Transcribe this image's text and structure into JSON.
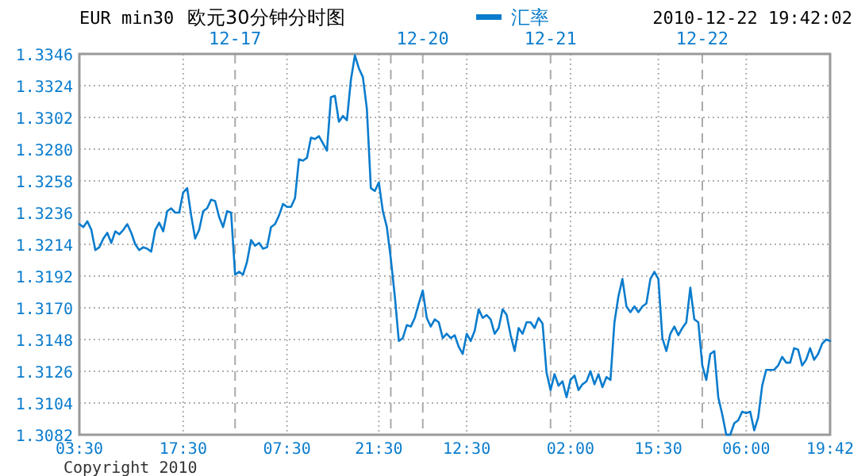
{
  "chart_data": {
    "type": "line",
    "title": "EUR min30",
    "subtitle": "欧元30分钟分时图",
    "annotations": [
      "2010-12-22 19:42:02",
      "Copyright 2010",
      "12-17",
      "12-20",
      "12-21",
      "12-22"
    ],
    "categories": [
      "03:30",
      null,
      null,
      null,
      null,
      null,
      null,
      null,
      null,
      null,
      null,
      null,
      null,
      null,
      null,
      null,
      null,
      null,
      null,
      null,
      null,
      null,
      null,
      null,
      null,
      null,
      "17:30",
      null,
      null,
      null,
      null,
      null,
      null,
      null,
      null,
      null,
      null,
      null,
      null,
      null,
      null,
      null,
      null,
      null,
      null,
      null,
      null,
      null,
      null,
      null,
      null,
      null,
      "07:30",
      null,
      null,
      null,
      null,
      null,
      null,
      null,
      null,
      null,
      null,
      null,
      null,
      null,
      null,
      null,
      null,
      null,
      null,
      null,
      null,
      null,
      null,
      "21:30",
      null,
      null,
      null,
      null,
      null,
      null,
      null,
      null,
      null,
      null,
      null,
      null,
      null,
      null,
      null,
      null,
      null,
      null,
      null,
      null,
      null,
      "12:30",
      null,
      null,
      null,
      null,
      null,
      null,
      null,
      null,
      null,
      null,
      null,
      null,
      null,
      null,
      null,
      null,
      null,
      null,
      null,
      null,
      null,
      null,
      null,
      null,
      null,
      "02:00",
      null,
      null,
      null,
      null,
      null,
      null,
      null,
      null,
      null,
      null,
      null,
      null,
      null,
      null,
      null,
      null,
      null,
      null,
      null,
      null,
      null,
      "15:30",
      null,
      null,
      null,
      null,
      null,
      null,
      null,
      null,
      null,
      null,
      null,
      null,
      null,
      null,
      null,
      null,
      null,
      null,
      null,
      null,
      null,
      "06:00",
      null,
      null,
      null,
      null,
      null,
      null,
      null,
      null,
      null,
      null,
      null,
      null,
      null,
      null,
      null,
      null,
      null,
      null,
      null,
      null,
      "19:42"
    ],
    "ylim": [
      1.3082,
      1.3346
    ],
    "yticks": [
      1.3082,
      1.3104,
      1.3126,
      1.3148,
      {
        "value": 1.317,
        "label": "1.3170"
      },
      1.3192,
      1.3214,
      1.3236,
      1.3258,
      {
        "value": 1.328,
        "label": "1.3280"
      },
      1.3302,
      1.3324,
      1.3346
    ],
    "grid": true,
    "legend": "top",
    "series": [
      {
        "name": "汇率",
        "color": "#0a7ccd",
        "values": [
          1.3228,
          1.3226,
          1.323,
          1.3224,
          1.321,
          1.3212,
          1.3218,
          1.3222,
          1.3215,
          1.3223,
          1.3221,
          1.3224,
          1.3228,
          1.3222,
          1.3214,
          1.321,
          1.3212,
          1.3211,
          1.3209,
          1.3224,
          1.3229,
          1.3223,
          1.3237,
          1.3239,
          1.3236,
          1.3236,
          1.325,
          1.3253,
          1.3234,
          1.3218,
          1.3224,
          1.3237,
          1.3239,
          1.3245,
          1.3244,
          1.3233,
          1.3226,
          1.3237,
          1.3236,
          1.3193,
          1.3195,
          1.3193,
          1.3202,
          1.3217,
          1.3213,
          1.3215,
          1.3211,
          1.3212,
          1.3226,
          1.3228,
          1.3234,
          1.3242,
          1.324,
          1.324,
          1.3246,
          1.3273,
          1.3272,
          1.3274,
          1.3288,
          1.3287,
          1.3289,
          1.3284,
          1.3279,
          1.3316,
          1.3317,
          1.3299,
          1.3303,
          1.33,
          1.3328,
          1.3345,
          1.3336,
          1.333,
          1.3308,
          1.3253,
          1.3251,
          1.3257,
          1.3237,
          1.3226,
          1.3204,
          1.3178,
          1.3147,
          1.3149,
          1.3158,
          1.3157,
          1.3163,
          1.3173,
          1.3182,
          1.3163,
          1.3157,
          1.3162,
          1.316,
          1.3149,
          1.3152,
          1.3149,
          1.3151,
          1.3143,
          1.3138,
          1.3152,
          1.3147,
          1.3154,
          1.3169,
          1.3163,
          1.3165,
          1.3162,
          1.3152,
          1.3156,
          1.3169,
          1.3165,
          1.3151,
          1.314,
          1.3156,
          1.3152,
          1.316,
          1.316,
          1.3156,
          1.3163,
          1.3159,
          1.3125,
          1.3113,
          1.3124,
          1.3116,
          1.3119,
          1.3108,
          1.312,
          1.3123,
          1.3113,
          1.3117,
          1.3119,
          1.3126,
          1.3117,
          1.3124,
          1.3115,
          1.3122,
          1.312,
          1.316,
          1.3178,
          1.319,
          1.3171,
          1.3167,
          1.3171,
          1.3167,
          1.3171,
          1.3173,
          1.319,
          1.3195,
          1.319,
          1.3149,
          1.314,
          1.3152,
          1.3157,
          1.3151,
          1.3156,
          1.316,
          1.3184,
          1.3162,
          1.316,
          1.313,
          1.312,
          1.3138,
          1.314,
          1.3108,
          1.3096,
          1.3082,
          1.3082,
          1.309,
          1.3092,
          1.3098,
          1.3097,
          1.3098,
          1.3085,
          1.3094,
          1.3116,
          1.3127,
          1.3127,
          1.3127,
          1.313,
          1.3136,
          1.3132,
          1.3132,
          1.3142,
          1.3141,
          1.313,
          1.3134,
          1.3142,
          1.3134,
          1.3138,
          1.3145,
          1.3148,
          1.3147
        ]
      }
    ]
  }
}
